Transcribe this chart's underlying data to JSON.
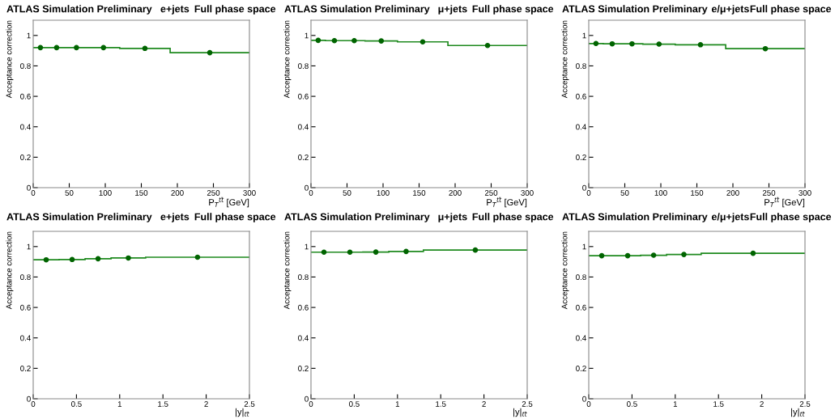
{
  "chart_data": [
    {
      "type": "histogram",
      "title": "ATLAS Simulation Preliminary",
      "subtitle": "e+jets",
      "annotations": [
        "Full phase space"
      ],
      "xlabel": "P$_{T}$$^{tt̄}$ [GeV]",
      "ylabel": "Acceptance correction",
      "bins": [
        0,
        20,
        45,
        75,
        120,
        190,
        300
      ],
      "values": [
        0.92,
        0.92,
        0.92,
        0.92,
        0.915,
        0.887
      ],
      "color": "#1f8a1f",
      "xlim": [
        0,
        300
      ],
      "xticks": [
        0,
        50,
        100,
        150,
        200,
        250,
        300
      ],
      "ylim": [
        0,
        1.1
      ],
      "yticks": [
        0,
        0.2,
        0.4,
        0.6,
        0.8,
        1
      ],
      "grid": false,
      "legend": false,
      "series": [
        {
          "type": "scatter",
          "x": [
            10,
            32.5,
            60,
            97.5,
            155,
            245
          ],
          "values": [
            0.92,
            0.92,
            0.92,
            0.92,
            0.915,
            0.887
          ],
          "color": "#006400",
          "marker": "circle"
        }
      ]
    },
    {
      "type": "histogram",
      "title": "ATLAS Simulation Preliminary",
      "subtitle": "μ+jets",
      "annotations": [
        "Full phase space"
      ],
      "xlabel": "P$_{T}$$^{tt̄}$ [GeV]",
      "ylabel": "Acceptance correction",
      "bins": [
        0,
        20,
        45,
        75,
        120,
        190,
        300
      ],
      "values": [
        0.968,
        0.966,
        0.966,
        0.964,
        0.958,
        0.934
      ],
      "color": "#1f8a1f",
      "xlim": [
        0,
        300
      ],
      "xticks": [
        0,
        50,
        100,
        150,
        200,
        250,
        300
      ],
      "ylim": [
        0,
        1.1
      ],
      "yticks": [
        0,
        0.2,
        0.4,
        0.6,
        0.8,
        1
      ],
      "grid": false,
      "legend": false,
      "series": [
        {
          "type": "scatter",
          "x": [
            10,
            32.5,
            60,
            97.5,
            155,
            245
          ],
          "values": [
            0.968,
            0.966,
            0.966,
            0.964,
            0.958,
            0.934
          ],
          "color": "#006400",
          "marker": "circle"
        }
      ]
    },
    {
      "type": "histogram",
      "title": "ATLAS Simulation Preliminary",
      "subtitle": "e/μ+jets",
      "annotations": [
        "Full phase space"
      ],
      "xlabel": "P$_{T}$$^{tt̄}$ [GeV]",
      "ylabel": "Acceptance correction",
      "bins": [
        0,
        20,
        45,
        75,
        120,
        190,
        300
      ],
      "values": [
        0.947,
        0.945,
        0.945,
        0.943,
        0.939,
        0.913
      ],
      "color": "#1f8a1f",
      "xlim": [
        0,
        300
      ],
      "xticks": [
        0,
        50,
        100,
        150,
        200,
        250,
        300
      ],
      "ylim": [
        0,
        1.1
      ],
      "yticks": [
        0,
        0.2,
        0.4,
        0.6,
        0.8,
        1
      ],
      "grid": false,
      "legend": false,
      "series": [
        {
          "type": "scatter",
          "x": [
            10,
            32.5,
            60,
            97.5,
            155,
            245
          ],
          "values": [
            0.947,
            0.945,
            0.945,
            0.943,
            0.939,
            0.913
          ],
          "color": "#006400",
          "marker": "circle"
        }
      ]
    },
    {
      "type": "histogram",
      "title": "ATLAS Simulation Preliminary",
      "subtitle": "e+jets",
      "annotations": [
        "Full phase space"
      ],
      "xlabel": "|y|$_{tt̄}$",
      "ylabel": "Acceptance correction",
      "bins": [
        0,
        0.3,
        0.6,
        0.9,
        1.3,
        2.5
      ],
      "values": [
        0.913,
        0.915,
        0.92,
        0.925,
        0.93
      ],
      "color": "#1f8a1f",
      "xlim": [
        0,
        2.5
      ],
      "xticks": [
        0,
        0.5,
        1,
        1.5,
        2,
        2.5
      ],
      "ylim": [
        0,
        1.1
      ],
      "yticks": [
        0,
        0.2,
        0.4,
        0.6,
        0.8,
        1
      ],
      "grid": false,
      "legend": false,
      "series": [
        {
          "type": "scatter",
          "x": [
            0.15,
            0.45,
            0.75,
            1.1,
            1.9
          ],
          "values": [
            0.913,
            0.915,
            0.92,
            0.925,
            0.93
          ],
          "color": "#006400",
          "marker": "circle"
        }
      ]
    },
    {
      "type": "histogram",
      "title": "ATLAS Simulation Preliminary",
      "subtitle": "μ+jets",
      "annotations": [
        "Full phase space"
      ],
      "xlabel": "|y|$_{tt̄}$",
      "ylabel": "Acceptance correction",
      "bins": [
        0,
        0.3,
        0.6,
        0.9,
        1.3,
        2.5
      ],
      "values": [
        0.963,
        0.963,
        0.964,
        0.968,
        0.977
      ],
      "color": "#1f8a1f",
      "xlim": [
        0,
        2.5
      ],
      "xticks": [
        0,
        0.5,
        1,
        1.5,
        2,
        2.5
      ],
      "ylim": [
        0,
        1.1
      ],
      "yticks": [
        0,
        0.2,
        0.4,
        0.6,
        0.8,
        1
      ],
      "grid": false,
      "legend": false,
      "series": [
        {
          "type": "scatter",
          "x": [
            0.15,
            0.45,
            0.75,
            1.1,
            1.9
          ],
          "values": [
            0.963,
            0.963,
            0.964,
            0.968,
            0.977
          ],
          "color": "#006400",
          "marker": "circle"
        }
      ]
    },
    {
      "type": "histogram",
      "title": "ATLAS Simulation Preliminary",
      "subtitle": "e/μ+jets",
      "annotations": [
        "Full phase space"
      ],
      "xlabel": "|y|$_{tt̄}$",
      "ylabel": "Acceptance correction",
      "bins": [
        0,
        0.3,
        0.6,
        0.9,
        1.3,
        2.5
      ],
      "values": [
        0.94,
        0.94,
        0.943,
        0.948,
        0.956
      ],
      "color": "#1f8a1f",
      "xlim": [
        0,
        2.5
      ],
      "xticks": [
        0,
        0.5,
        1,
        1.5,
        2,
        2.5
      ],
      "ylim": [
        0,
        1.1
      ],
      "yticks": [
        0,
        0.2,
        0.4,
        0.6,
        0.8,
        1
      ],
      "grid": false,
      "legend": false,
      "series": [
        {
          "type": "scatter",
          "x": [
            0.15,
            0.45,
            0.75,
            1.1,
            1.9
          ],
          "values": [
            0.94,
            0.94,
            0.943,
            0.948,
            0.956
          ],
          "color": "#006400",
          "marker": "circle"
        }
      ]
    }
  ]
}
